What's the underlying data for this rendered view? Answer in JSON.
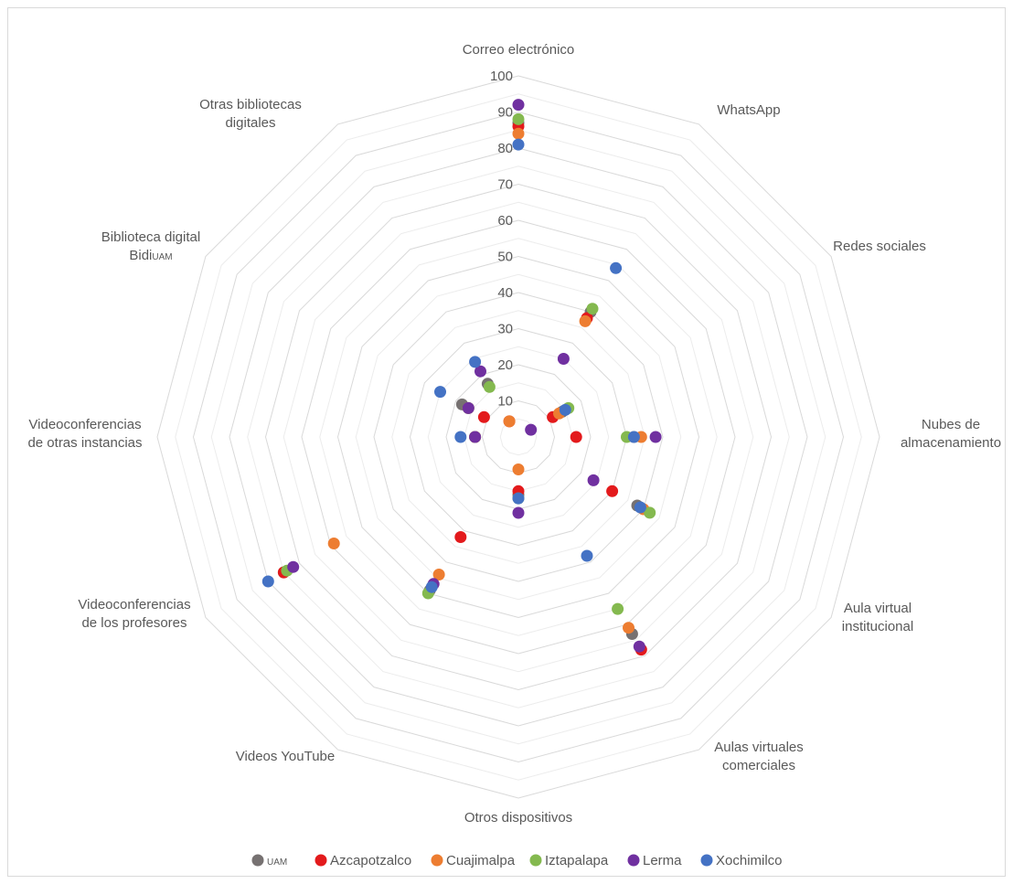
{
  "chart_data": {
    "type": "radar-scatter",
    "categories": [
      {
        "lines": [
          "Correo electrónico"
        ]
      },
      {
        "lines": [
          "WhatsApp"
        ]
      },
      {
        "lines": [
          "Redes sociales"
        ]
      },
      {
        "lines": [
          "Nubes de",
          "almacenamiento"
        ]
      },
      {
        "lines": [
          "Aula virtual",
          "institucional"
        ]
      },
      {
        "lines": [
          "Aulas virtuales",
          "comerciales"
        ]
      },
      {
        "lines": [
          "Otros dispositivos"
        ]
      },
      {
        "lines": [
          "Videos YouTube"
        ]
      },
      {
        "lines": [
          "Videoconferencias",
          "de los profesores"
        ]
      },
      {
        "lines": [
          "Videoconferencias",
          "de otras instancias"
        ]
      },
      {
        "lines": [
          "Biblioteca digital",
          "Bidi",
          "UAM"
        ]
      },
      {
        "lines": [
          "Otras bibliotecas",
          "digitales"
        ]
      }
    ],
    "rlim": [
      0,
      100
    ],
    "ticks": [
      "10",
      "20",
      "30",
      "40",
      "50",
      "60",
      "70",
      "80",
      "90",
      "100"
    ],
    "grid": true,
    "legend_position": "bottom",
    "series": [
      {
        "name": "UAM",
        "color": "#767171",
        "values": [
          87,
          40,
          14,
          32,
          38,
          63,
          16,
          49,
          75,
          12,
          18,
          17
        ]
      },
      {
        "name": "Azcapotzalco",
        "color": "#e31a1c",
        "values": [
          86,
          38,
          11,
          16,
          30,
          68,
          15,
          32,
          75,
          12,
          11,
          5
        ]
      },
      {
        "name": "Cuajimalpa",
        "color": "#ed7d31",
        "values": [
          84,
          37,
          13,
          34,
          40,
          61,
          9,
          44,
          59,
          12,
          16,
          5
        ]
      },
      {
        "name": "Iztapalapa",
        "color": "#84b94f",
        "values": [
          88,
          41,
          16,
          30,
          42,
          55,
          17,
          50,
          74,
          12,
          16,
          16
        ]
      },
      {
        "name": "Lerma",
        "color": "#7030a0",
        "values": [
          92,
          25,
          4,
          38,
          24,
          67,
          21,
          47,
          72,
          12,
          16,
          21
        ]
      },
      {
        "name": "Xochimilco",
        "color": "#4472c4",
        "values": [
          81,
          54,
          15,
          32,
          39,
          38,
          17,
          48,
          80,
          16,
          25,
          24
        ]
      }
    ]
  }
}
